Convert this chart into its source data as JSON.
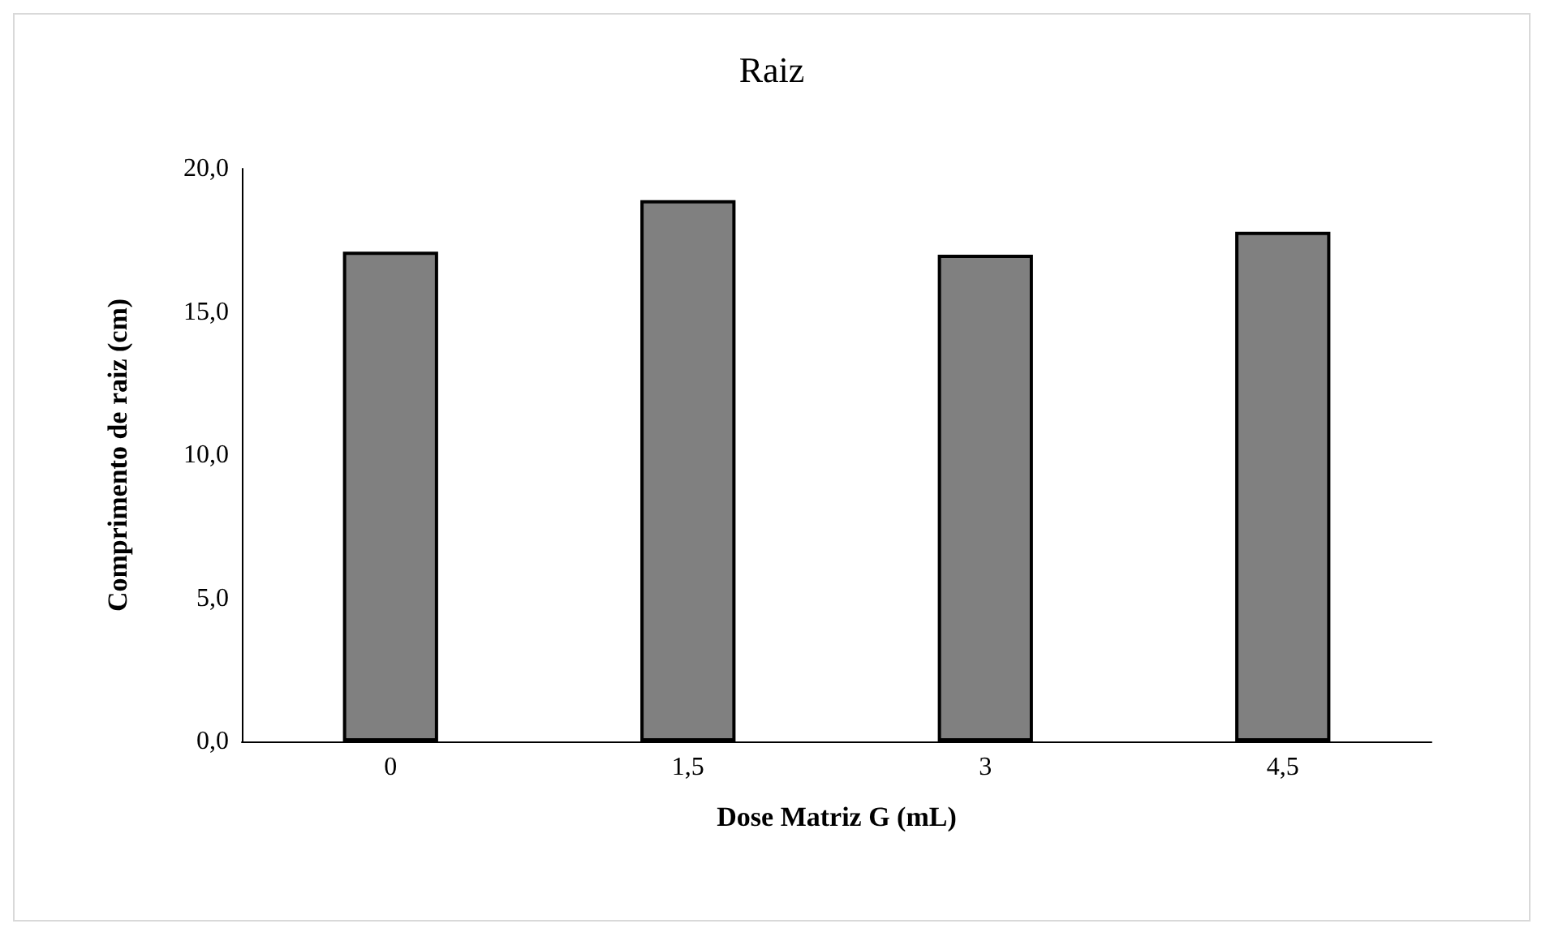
{
  "chart_data": {
    "type": "bar",
    "title": "Raiz",
    "xlabel": "Dose Matriz G (mL)",
    "ylabel": "Comprimento de raiz (cm)",
    "categories": [
      "0",
      "1,5",
      "3",
      "4,5"
    ],
    "values": [
      17.1,
      18.9,
      17.0,
      17.8
    ],
    "color": "#808080",
    "ylim": [
      0,
      20
    ],
    "yticks": [
      {
        "value": 0,
        "label": "0,0"
      },
      {
        "value": 5,
        "label": "5,0"
      },
      {
        "value": 10,
        "label": "10,0"
      },
      {
        "value": 15,
        "label": "15,0"
      },
      {
        "value": 20,
        "label": "20,0"
      }
    ],
    "grid": false
  }
}
